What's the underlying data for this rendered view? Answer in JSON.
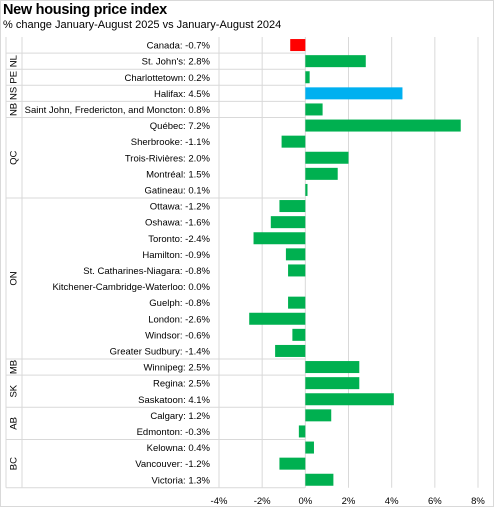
{
  "chart_data": {
    "type": "bar",
    "orientation": "horizontal",
    "title": "New housing price index",
    "subtitle": "% change January-August 2025 vs January-August 2024",
    "xlim": [
      -4,
      8
    ],
    "x_ticks": [
      "-4%",
      "-2%",
      "0%",
      "2%",
      "4%",
      "6%",
      "8%"
    ],
    "grid": true,
    "colors": {
      "canada": "#ff0000",
      "highlight": "#00b0f0",
      "default": "#00b050"
    },
    "categories": [
      {
        "label": "Canada: -0.7%",
        "value": -0.7,
        "color": "canada"
      },
      {
        "label": "St. John's: 2.8%",
        "value": 2.8,
        "color": "default"
      },
      {
        "label": "Charlottetown: 0.2%",
        "value": 0.2,
        "color": "default"
      },
      {
        "label": "Halifax: 4.5%",
        "value": 4.5,
        "color": "highlight"
      },
      {
        "label": "Saint John, Fredericton, and Moncton: 0.8%",
        "value": 0.8,
        "color": "default"
      },
      {
        "label": "Québec: 7.2%",
        "value": 7.2,
        "color": "default"
      },
      {
        "label": "Sherbrooke: -1.1%",
        "value": -1.1,
        "color": "default"
      },
      {
        "label": "Trois-Rivières: 2.0%",
        "value": 2.0,
        "color": "default"
      },
      {
        "label": "Montréal: 1.5%",
        "value": 1.5,
        "color": "default"
      },
      {
        "label": "Gatineau: 0.1%",
        "value": 0.1,
        "color": "default"
      },
      {
        "label": "Ottawa: -1.2%",
        "value": -1.2,
        "color": "default"
      },
      {
        "label": "Oshawa: -1.6%",
        "value": -1.6,
        "color": "default"
      },
      {
        "label": "Toronto: -2.4%",
        "value": -2.4,
        "color": "default"
      },
      {
        "label": "Hamilton: -0.9%",
        "value": -0.9,
        "color": "default"
      },
      {
        "label": "St. Catharines-Niagara: -0.8%",
        "value": -0.8,
        "color": "default"
      },
      {
        "label": "Kitchener-Cambridge-Waterloo: 0.0%",
        "value": 0.0,
        "color": "default"
      },
      {
        "label": "Guelph: -0.8%",
        "value": -0.8,
        "color": "default"
      },
      {
        "label": "London: -2.6%",
        "value": -2.6,
        "color": "default"
      },
      {
        "label": "Windsor: -0.6%",
        "value": -0.6,
        "color": "default"
      },
      {
        "label": "Greater Sudbury: -1.4%",
        "value": -1.4,
        "color": "default"
      },
      {
        "label": "Winnipeg: 2.5%",
        "value": 2.5,
        "color": "default"
      },
      {
        "label": "Regina: 2.5%",
        "value": 2.5,
        "color": "default"
      },
      {
        "label": "Saskatoon: 4.1%",
        "value": 4.1,
        "color": "default"
      },
      {
        "label": "Calgary: 1.2%",
        "value": 1.2,
        "color": "default"
      },
      {
        "label": "Edmonton: -0.3%",
        "value": -0.3,
        "color": "default"
      },
      {
        "label": "Kelowna: 0.4%",
        "value": 0.4,
        "color": "default"
      },
      {
        "label": "Vancouver: -1.2%",
        "value": -1.2,
        "color": "default"
      },
      {
        "label": "Victoria: 1.3%",
        "value": 1.3,
        "color": "default"
      }
    ],
    "groups": [
      {
        "label": "NL",
        "start": 1,
        "end": 1
      },
      {
        "label": "PE",
        "start": 2,
        "end": 2
      },
      {
        "label": "NS",
        "start": 3,
        "end": 3
      },
      {
        "label": "NB",
        "start": 4,
        "end": 4
      },
      {
        "label": "QC",
        "start": 5,
        "end": 9
      },
      {
        "label": "ON",
        "start": 10,
        "end": 19
      },
      {
        "label": "MB",
        "start": 20,
        "end": 20
      },
      {
        "label": "SK",
        "start": 21,
        "end": 22
      },
      {
        "label": "AB",
        "start": 23,
        "end": 24
      },
      {
        "label": "BC",
        "start": 25,
        "end": 27
      }
    ]
  }
}
